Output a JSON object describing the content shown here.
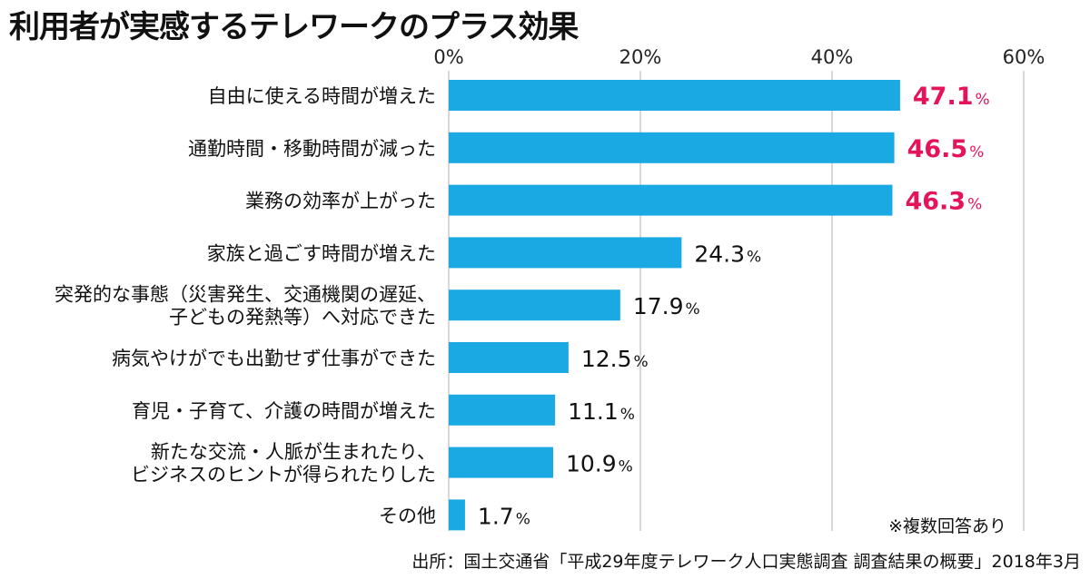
{
  "title": "利用者が実感するテレワークのプラス効果",
  "note": "※複数回答あり",
  "source": "出所：国土交通省「平成29年度テレワーク人口実態調査 調査結果の概要」2018年3月",
  "colors": {
    "bar": "#1BA9E4",
    "highlight": "#E5145A",
    "grid": "#CCCCCC",
    "text": "#111111"
  },
  "chart_data": {
    "type": "bar",
    "orientation": "horizontal",
    "categories": [
      [
        "自由に使える時間が増えた"
      ],
      [
        "通勤時間・移動時間が減った"
      ],
      [
        "業務の効率が上がった"
      ],
      [
        "家族と過ごす時間が増えた"
      ],
      [
        "突発的な事態（災害発生、交通機関の遅延、",
        "子どもの発熱等）へ対応できた"
      ],
      [
        "病気やけがでも出勤せず仕事ができた"
      ],
      [
        "育児・子育て、介護の時間が増えた"
      ],
      [
        "新たな交流・人脈が生まれたり、",
        "ビジネスのヒントが得られたりした"
      ],
      [
        "その他"
      ]
    ],
    "values": [
      47.1,
      46.5,
      46.3,
      24.3,
      17.9,
      12.5,
      11.1,
      10.9,
      1.7
    ],
    "value_labels": [
      "47.1",
      "46.5",
      "46.3",
      "24.3",
      "17.9",
      "12.5",
      "11.1",
      "10.9",
      "1.7"
    ],
    "unit": "%",
    "highlight_top": 3,
    "xlim": [
      0,
      60
    ],
    "ticks": [
      0,
      20,
      40,
      60
    ],
    "tick_labels": [
      "0%",
      "20%",
      "40%",
      "60%"
    ],
    "xlabel": "",
    "ylabel": "",
    "grid": true
  }
}
